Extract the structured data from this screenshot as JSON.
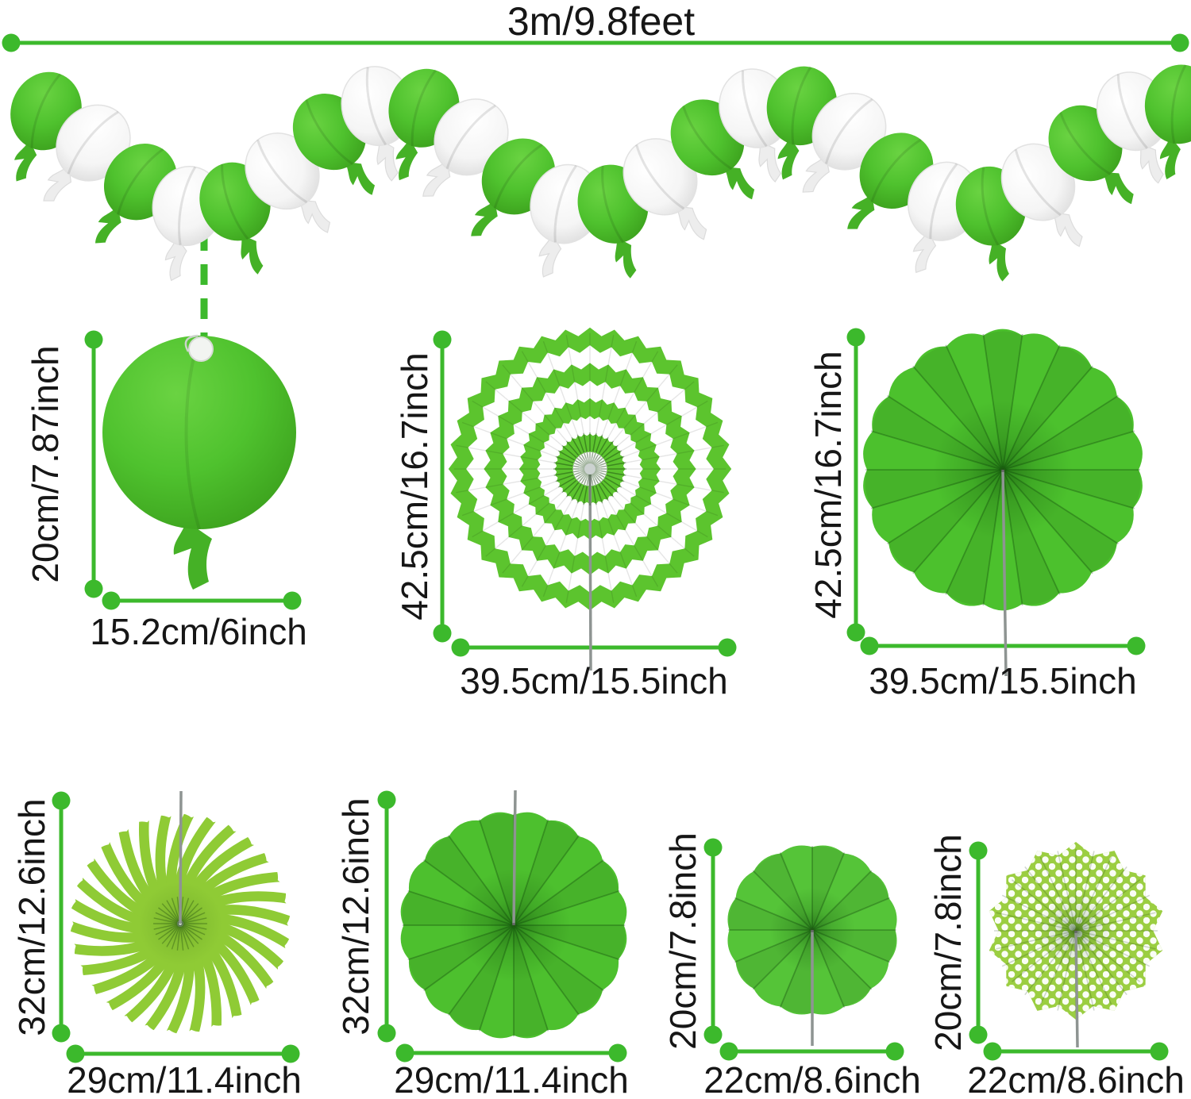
{
  "page": {
    "background": "#ffffff",
    "accent_green": "#3CB92C",
    "text_color": "#161616"
  },
  "banner": {
    "length_label": "3m/9.8feet",
    "description": "green and white paper balloon garland",
    "balloon_green": "#4FC22E",
    "balloon_white": "#FFFFFF",
    "balloon_count": 25
  },
  "items": [
    {
      "name": "paper balloon cutout",
      "pattern": "solid",
      "color": "#4FC22E",
      "height_label": "20cm/7.87inch",
      "width_label": "15.2cm/6inch"
    },
    {
      "name": "paper fan concentric stripes",
      "pattern": "concentric-stripes",
      "color": "#5CC42E",
      "alt_color": "#FFFFFF",
      "height_label": "42.5cm/16.7inch",
      "width_label": "39.5cm/15.5inch"
    },
    {
      "name": "paper fan solid large",
      "pattern": "solid-pleated",
      "color": "#4CC12D",
      "height_label": "42.5cm/16.7inch",
      "width_label": "39.5cm/15.5inch"
    },
    {
      "name": "paper fan swirl stripes",
      "pattern": "swirl-stripes",
      "color": "#8FCB35",
      "alt_color": "#FFFFFF",
      "height_label": "32cm/12.6inch",
      "width_label": "29cm/11.4inch"
    },
    {
      "name": "paper fan solid medium",
      "pattern": "solid-pleated",
      "color": "#4DC02E",
      "height_label": "32cm/12.6inch",
      "width_label": "29cm/11.4inch"
    },
    {
      "name": "paper fan solid small",
      "pattern": "solid-pleated",
      "color": "#55C438",
      "height_label": "20cm/7.8inch",
      "width_label": "22cm/8.6inch"
    },
    {
      "name": "paper fan polka dot",
      "pattern": "polka-dot",
      "color": "#9BCE41",
      "dot_color": "#FFFFFF",
      "height_label": "20cm/7.8inch",
      "width_label": "22cm/8.6inch"
    }
  ]
}
